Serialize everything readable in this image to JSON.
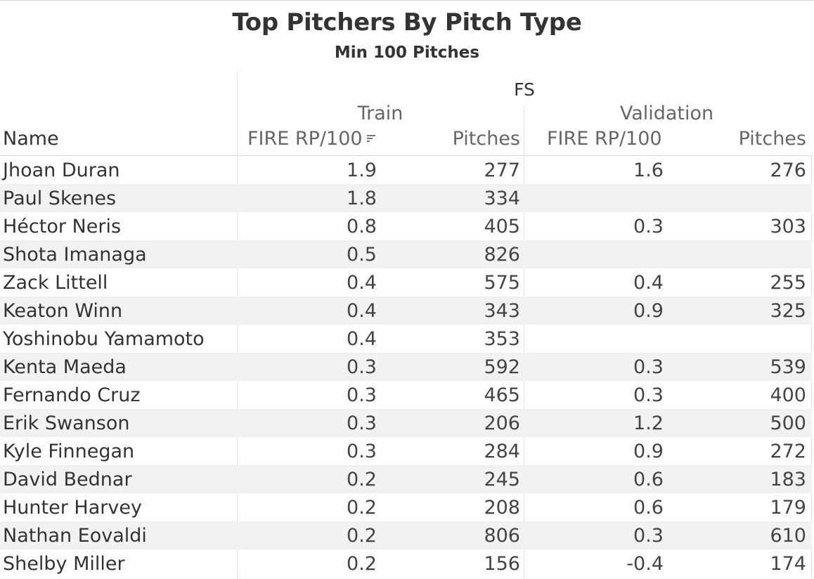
{
  "chart_data": {
    "type": "table",
    "title": "Top Pitchers By Pitch Type",
    "subtitle": "Min 100 Pitches",
    "pitch_type": "FS",
    "groups": [
      "Train",
      "Validation"
    ],
    "row_header": "Name",
    "columns": [
      "FIRE RP/100",
      "Pitches",
      "FIRE RP/100",
      "Pitches"
    ],
    "sorted_column": "FIRE RP/100",
    "rows": [
      {
        "name": "Jhoan Duran",
        "train_fire": "1.9",
        "train_pitches": "277",
        "val_fire": "1.6",
        "val_pitches": "276"
      },
      {
        "name": "Paul Skenes",
        "train_fire": "1.8",
        "train_pitches": "334",
        "val_fire": "",
        "val_pitches": ""
      },
      {
        "name": "Héctor Neris",
        "train_fire": "0.8",
        "train_pitches": "405",
        "val_fire": "0.3",
        "val_pitches": "303"
      },
      {
        "name": "Shota Imanaga",
        "train_fire": "0.5",
        "train_pitches": "826",
        "val_fire": "",
        "val_pitches": ""
      },
      {
        "name": "Zack Littell",
        "train_fire": "0.4",
        "train_pitches": "575",
        "val_fire": "0.4",
        "val_pitches": "255"
      },
      {
        "name": "Keaton Winn",
        "train_fire": "0.4",
        "train_pitches": "343",
        "val_fire": "0.9",
        "val_pitches": "325"
      },
      {
        "name": "Yoshinobu Yamamoto",
        "train_fire": "0.4",
        "train_pitches": "353",
        "val_fire": "",
        "val_pitches": ""
      },
      {
        "name": "Kenta Maeda",
        "train_fire": "0.3",
        "train_pitches": "592",
        "val_fire": "0.3",
        "val_pitches": "539"
      },
      {
        "name": "Fernando Cruz",
        "train_fire": "0.3",
        "train_pitches": "465",
        "val_fire": "0.3",
        "val_pitches": "400"
      },
      {
        "name": "Erik Swanson",
        "train_fire": "0.3",
        "train_pitches": "206",
        "val_fire": "1.2",
        "val_pitches": "500"
      },
      {
        "name": "Kyle Finnegan",
        "train_fire": "0.3",
        "train_pitches": "284",
        "val_fire": "0.9",
        "val_pitches": "272"
      },
      {
        "name": "David Bednar",
        "train_fire": "0.2",
        "train_pitches": "245",
        "val_fire": "0.6",
        "val_pitches": "183"
      },
      {
        "name": "Hunter Harvey",
        "train_fire": "0.2",
        "train_pitches": "208",
        "val_fire": "0.6",
        "val_pitches": "179"
      },
      {
        "name": "Nathan Eovaldi",
        "train_fire": "0.2",
        "train_pitches": "806",
        "val_fire": "0.3",
        "val_pitches": "610"
      },
      {
        "name": "Shelby Miller",
        "train_fire": "0.2",
        "train_pitches": "156",
        "val_fire": "-0.4",
        "val_pitches": "174"
      }
    ]
  },
  "colors": {
    "text_dark": "#333333",
    "text_header": "#666666",
    "row_band": "#f2f2f2",
    "grid_line": "#dcdcdc"
  },
  "icons": {
    "sort": "sort-descending-icon"
  }
}
